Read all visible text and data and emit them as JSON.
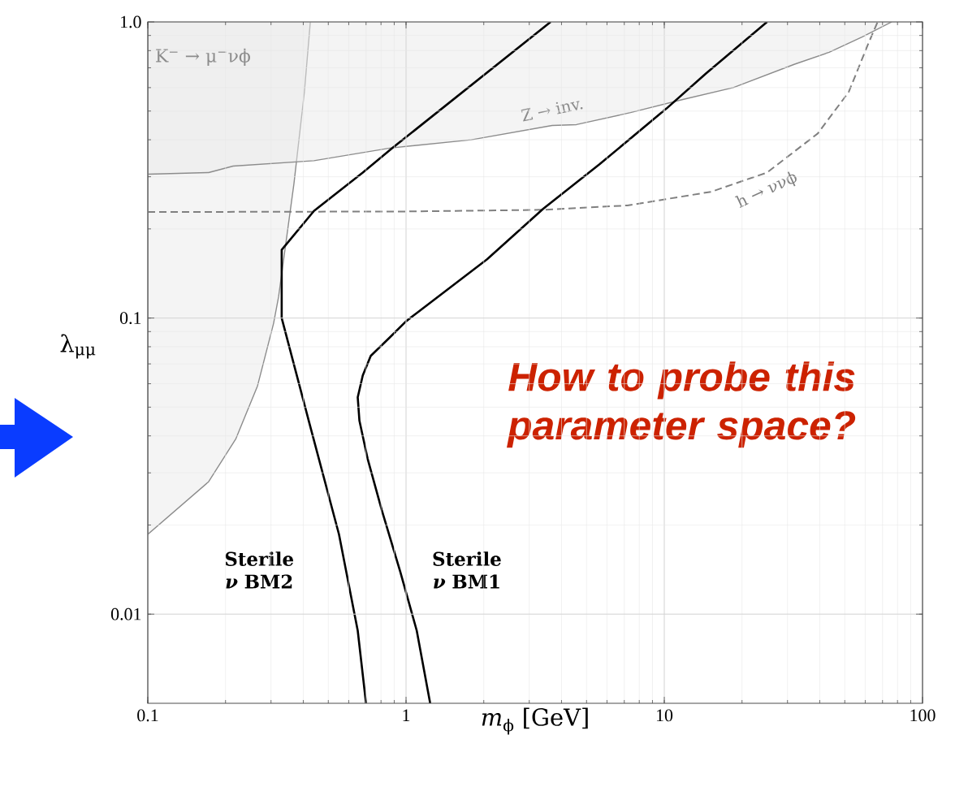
{
  "chart_data": {
    "type": "line",
    "xlabel": "*m*$_{ϕ}$ [GeV]",
    "ylabel": "λ$_{μμ}$",
    "log": "xy",
    "grid": true,
    "xlim": [
      0.1,
      100
    ],
    "ylim": [
      0.005,
      1
    ],
    "xticks": [
      0.1,
      1,
      10,
      100
    ],
    "yticks": [
      0.01,
      0.1,
      {
        "value": 1,
        "label": "1.0"
      }
    ],
    "annotations": [
      "How to probe this parameter space?"
    ],
    "series": [
      {
        "name": "K$^{−}$ → μ$^{−}$νϕ",
        "type": "area",
        "color": "#e9e9e9",
        "x": [
          0.1,
          0.1,
          0.172,
          0.219,
          0.266,
          0.307,
          0.321,
          0.368,
          0.404,
          0.426
        ],
        "values": [
          1,
          0.0186,
          0.028,
          0.039,
          0.059,
          0.096,
          0.118,
          0.284,
          0.58,
          1
        ]
      },
      {
        "name": "Z → inv.",
        "type": "area",
        "color": "#e9e9e9",
        "x": [
          0.1,
          0.1,
          0.172,
          0.214,
          0.44,
          0.865,
          1.79,
          3.68,
          4.57,
          7.4,
          11.8,
          18.5,
          32,
          43.5,
          58.5,
          76
        ],
        "values": [
          1,
          0.306,
          0.31,
          0.326,
          0.34,
          0.375,
          0.4,
          0.447,
          0.45,
          0.494,
          0.547,
          0.6,
          0.72,
          0.79,
          0.89,
          1
        ]
      },
      {
        "name": "h → ννϕ",
        "line_style": "dashed",
        "color": "#808080",
        "x": [
          0.1,
          1,
          3.4,
          7.2,
          15.2,
          25,
          39.3,
          51.8,
          61.5,
          67
        ],
        "values": [
          0.228,
          0.229,
          0.232,
          0.24,
          0.267,
          0.31,
          0.42,
          0.58,
          0.84,
          1
        ]
      },
      {
        "name": "Sterile *ν* BM2",
        "color": "#000000",
        "x": [
          0.7,
          0.65,
          0.55,
          0.42,
          0.33,
          0.33,
          0.44,
          0.68,
          0.885,
          3.63
        ],
        "values": [
          0.005,
          0.0088,
          0.0186,
          0.045,
          0.1,
          0.17,
          0.23,
          0.31,
          0.375,
          1
        ]
      },
      {
        "name": "Sterile *ν* BM1",
        "color": "#000000",
        "x": [
          1.24,
          1.1,
          0.95,
          0.805,
          0.71,
          0.66,
          0.65,
          0.68,
          0.73,
          0.865,
          1.0,
          1.1,
          2.06,
          3.4,
          5.6,
          10.2,
          14.5,
          25
        ],
        "values": [
          0.005,
          0.0088,
          0.0139,
          0.0225,
          0.0335,
          0.045,
          0.054,
          0.064,
          0.0745,
          0.086,
          0.0975,
          0.104,
          0.158,
          0.234,
          0.33,
          0.51,
          0.67,
          1
        ]
      }
    ]
  }
}
